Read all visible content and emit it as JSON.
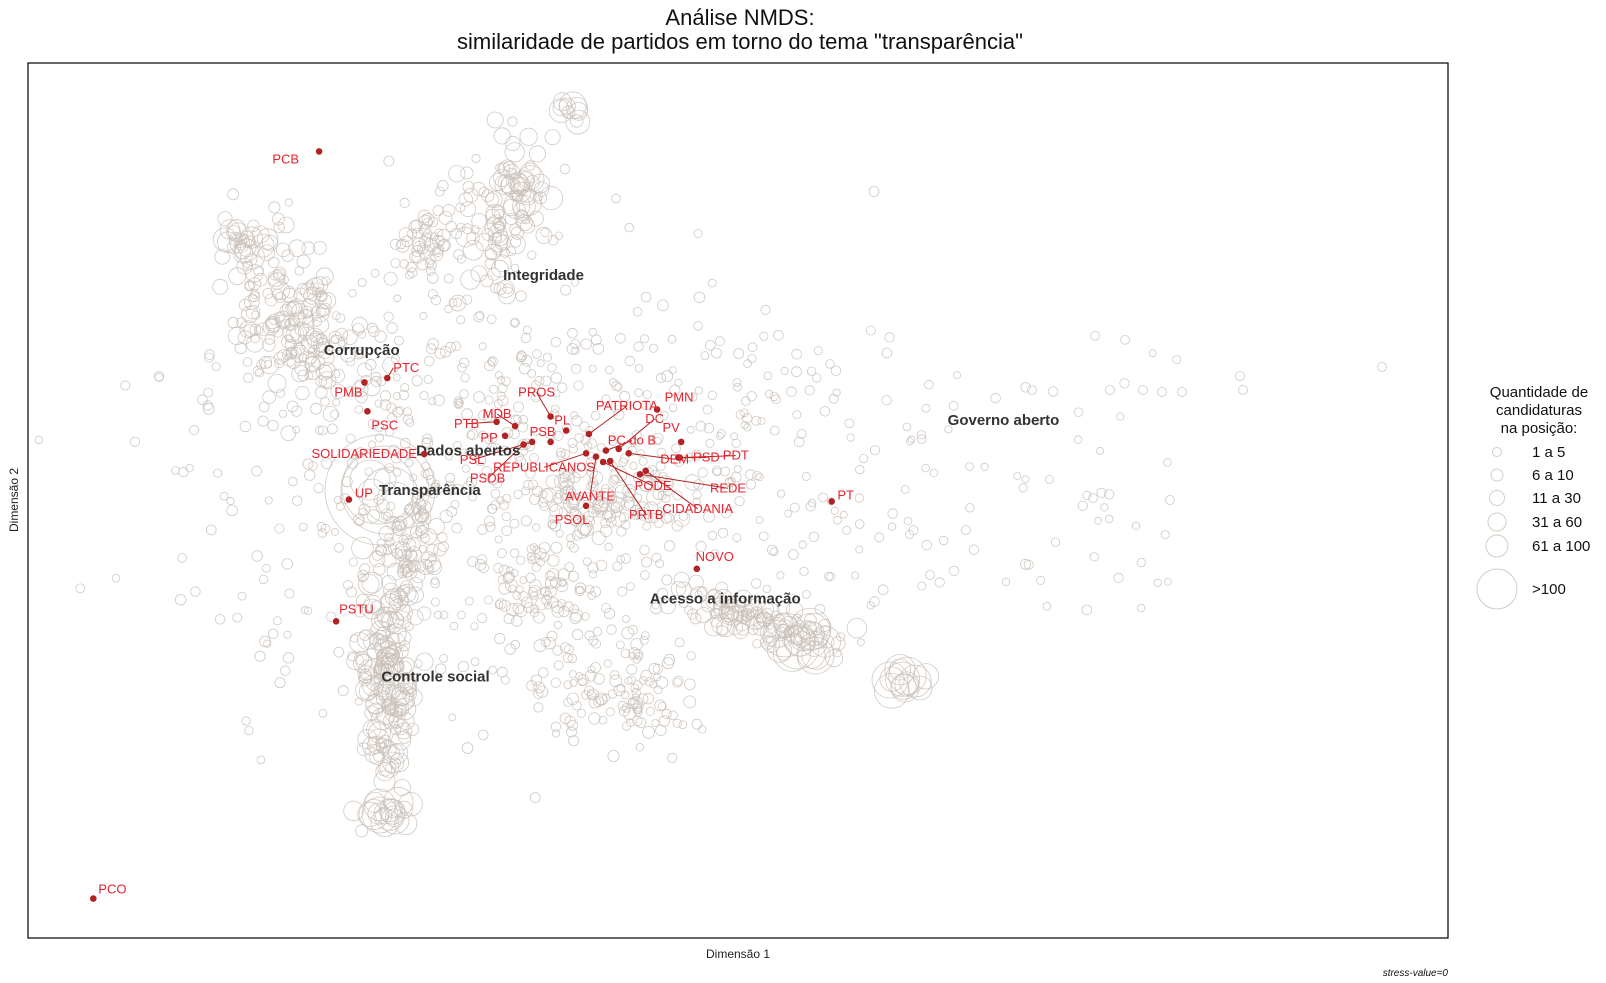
{
  "chart_data": {
    "type": "scatter",
    "title_lines": [
      "Análise NMDS:",
      "similaridade de partidos em torno do tema \"transparência\""
    ],
    "xlabel": "Dimensão 1",
    "ylabel": "Dimensão 2",
    "caption": "stress-value=0",
    "xlim": [
      0,
      100
    ],
    "ylim": [
      0,
      100
    ],
    "grid": false,
    "legend": {
      "position": "right",
      "title_lines": [
        "Quantidade de",
        "candidaturas",
        "na posição:"
      ],
      "entries": [
        "1 a 5",
        "6 a 10",
        "11 a 30",
        "31 a 60",
        "61 a 100",
        ">100"
      ]
    },
    "colors": {
      "party": "#b22222",
      "party_label": "#e8232d",
      "bubble": "#c9c0b8",
      "frame": "#000000"
    },
    "parties": [
      {
        "name": "PCB",
        "x": 20.5,
        "y": 89.9
      },
      {
        "name": "PTC",
        "x": 25.3,
        "y": 64.0
      },
      {
        "name": "PMB",
        "x": 23.7,
        "y": 63.5
      },
      {
        "name": "PSC",
        "x": 23.9,
        "y": 60.2
      },
      {
        "name": "SOLIDARIEDADE",
        "x": 27.9,
        "y": 55.3
      },
      {
        "name": "UP",
        "x": 22.6,
        "y": 50.1
      },
      {
        "name": "PSTU",
        "x": 21.7,
        "y": 36.2
      },
      {
        "name": "PCO",
        "x": 4.6,
        "y": 4.5
      },
      {
        "name": "PROS",
        "x": 36.8,
        "y": 59.6
      },
      {
        "name": "PATRIOTA",
        "x": 39.5,
        "y": 57.6
      },
      {
        "name": "PL",
        "x": 37.9,
        "y": 58.0
      },
      {
        "name": "MDB",
        "x": 34.3,
        "y": 58.5
      },
      {
        "name": "PTB",
        "x": 33.0,
        "y": 59.0
      },
      {
        "name": "PSB",
        "x": 36.8,
        "y": 56.7
      },
      {
        "name": "PP",
        "x": 33.6,
        "y": 57.4
      },
      {
        "name": "PSL",
        "x": 35.5,
        "y": 56.7
      },
      {
        "name": "REPUBLICANOS",
        "x": 39.3,
        "y": 55.4
      },
      {
        "name": "PSDB",
        "x": 34.9,
        "y": 56.4
      },
      {
        "name": "AVANTE",
        "x": 40.0,
        "y": 55.0
      },
      {
        "name": "PSOL",
        "x": 39.3,
        "y": 49.4
      },
      {
        "name": "PC do B",
        "x": 40.7,
        "y": 55.7
      },
      {
        "name": "PRTB",
        "x": 41.0,
        "y": 54.5
      },
      {
        "name": "DC",
        "x": 41.6,
        "y": 55.9
      },
      {
        "name": "DEM",
        "x": 42.3,
        "y": 55.4
      },
      {
        "name": "PODE",
        "x": 40.5,
        "y": 54.4
      },
      {
        "name": "CIDADANIA",
        "x": 43.5,
        "y": 53.4
      },
      {
        "name": "PMN",
        "x": 44.3,
        "y": 60.4
      },
      {
        "name": "PV",
        "x": 46.0,
        "y": 56.7
      },
      {
        "name": "PSD",
        "x": 45.8,
        "y": 54.9
      },
      {
        "name": "PDT",
        "x": 45.9,
        "y": 54.9
      },
      {
        "name": "REDE",
        "x": 43.1,
        "y": 53.0
      },
      {
        "name": "PT",
        "x": 56.6,
        "y": 49.9
      },
      {
        "name": "NOVO",
        "x": 47.1,
        "y": 42.2
      }
    ],
    "topics": [
      {
        "name": "Integridade",
        "x": 36.3,
        "y": 75.8
      },
      {
        "name": "Corrupção",
        "x": 23.5,
        "y": 67.2
      },
      {
        "name": "Dados abertos",
        "x": 31.0,
        "y": 55.7
      },
      {
        "name": "Transparência",
        "x": 28.3,
        "y": 51.2
      },
      {
        "name": "Governo aberto",
        "x": 68.7,
        "y": 59.2
      },
      {
        "name": "Acesso a informação",
        "x": 49.1,
        "y": 38.8
      },
      {
        "name": "Controle social",
        "x": 28.7,
        "y": 29.9
      }
    ]
  }
}
